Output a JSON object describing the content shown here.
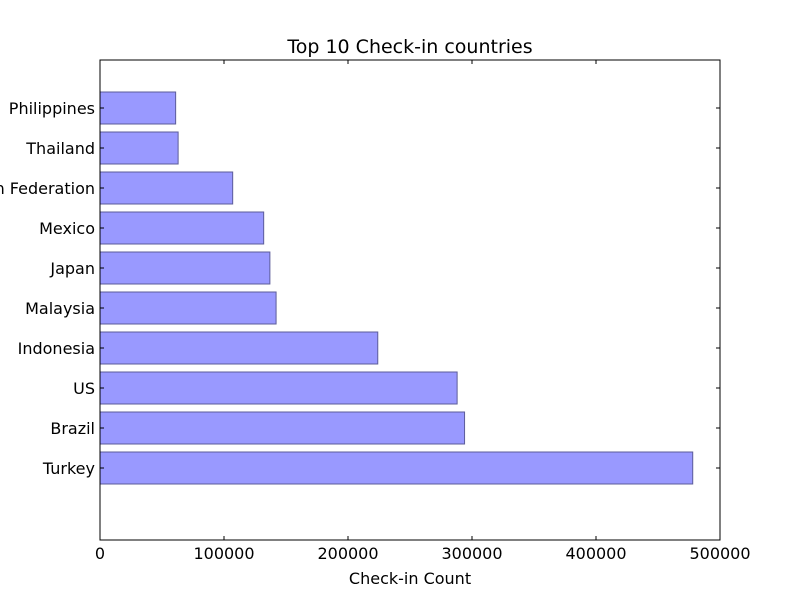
{
  "chart_data": {
    "type": "bar",
    "orientation": "horizontal",
    "title": "Top 10 Check-in countries",
    "xlabel": "Check-in Count",
    "ylabel": "",
    "categories": [
      "Philippines",
      "Thailand",
      "Russian Federation",
      "Mexico",
      "Japan",
      "Malaysia",
      "Indonesia",
      "US",
      "Brazil",
      "Turkey"
    ],
    "values": [
      61000,
      63000,
      107000,
      132000,
      137000,
      142000,
      224000,
      288000,
      294000,
      478000
    ],
    "xlim": [
      0,
      500000
    ],
    "xticks": [
      0,
      100000,
      200000,
      300000,
      400000,
      500000
    ],
    "bar_color": "#9999ff",
    "bar_edge_color": "#5c5c99",
    "grid": false,
    "legend": "none"
  }
}
